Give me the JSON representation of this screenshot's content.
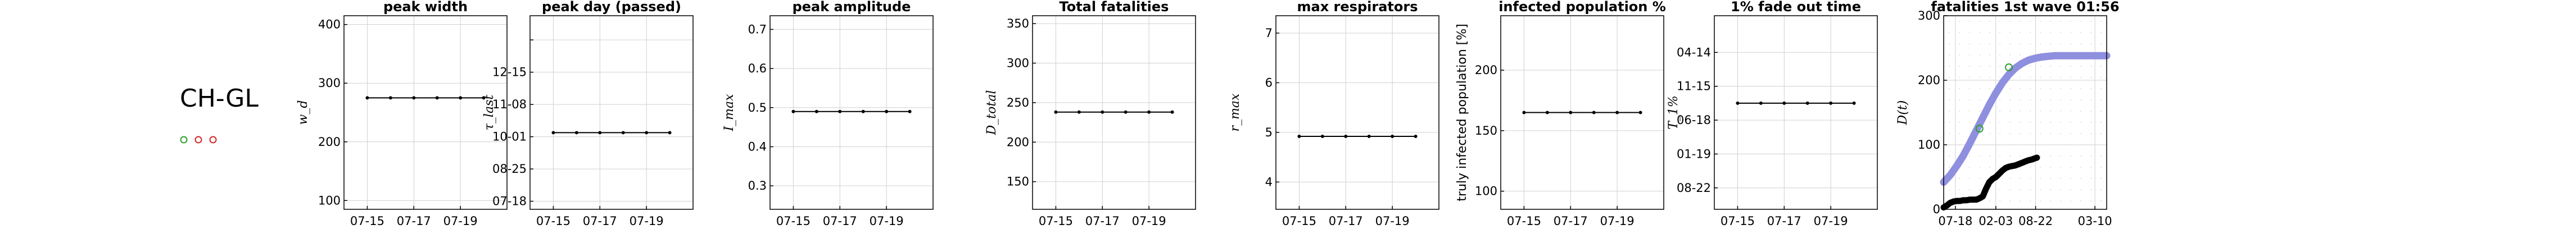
{
  "region": {
    "label": "CH-GL",
    "markers": [
      {
        "color": "#2ca02c"
      },
      {
        "color": "#d62728"
      },
      {
        "color": "#d62728"
      }
    ]
  },
  "chart_data": [
    {
      "type": "line",
      "title": "peak width",
      "ylabel": "w_d",
      "ylim": [
        85,
        415
      ],
      "yticks": [
        100,
        200,
        300,
        400
      ],
      "ytick_labels": [
        "100",
        "200",
        "300",
        "400"
      ],
      "xlim": [
        0,
        7
      ],
      "x": [
        1,
        2,
        3,
        4,
        5,
        6
      ],
      "xticks": [
        1,
        3,
        5
      ],
      "xtick_labels": [
        "07-15",
        "07-17",
        "07-19"
      ],
      "series": [
        {
          "values": [
            275,
            275,
            275,
            275,
            275,
            275
          ]
        }
      ]
    },
    {
      "type": "line",
      "title": "peak day (passed)",
      "ylabel": "τ_last",
      "ylim": [
        -10,
        230
      ],
      "yticks": [
        0,
        40,
        80,
        120,
        160,
        200
      ],
      "ytick_labels": [
        "07-18",
        "08-25",
        "10-01",
        "11-08",
        "12-15",
        ""
      ],
      "xlim": [
        0,
        7
      ],
      "x": [
        1,
        2,
        3,
        4,
        5,
        6
      ],
      "xticks": [
        1,
        3,
        5
      ],
      "xtick_labels": [
        "07-15",
        "07-17",
        "07-19"
      ],
      "series": [
        {
          "values": [
            85,
            85,
            85,
            85,
            85,
            85
          ]
        }
      ]
    },
    {
      "type": "line",
      "title": "peak amplitude",
      "ylabel": "I_max",
      "ylim": [
        0.24,
        0.735
      ],
      "yticks": [
        0.3,
        0.4,
        0.5,
        0.6,
        0.7
      ],
      "ytick_labels": [
        "0.3",
        "0.4",
        "0.5",
        "0.6",
        "0.7"
      ],
      "xlim": [
        0,
        7
      ],
      "x": [
        1,
        2,
        3,
        4,
        5,
        6
      ],
      "xticks": [
        1,
        3,
        5
      ],
      "xtick_labels": [
        "07-15",
        "07-17",
        "07-19"
      ],
      "series": [
        {
          "values": [
            0.49,
            0.49,
            0.49,
            0.49,
            0.49,
            0.49
          ]
        }
      ]
    },
    {
      "type": "line",
      "title": "Total fatalities",
      "ylabel": "D_total",
      "ylim": [
        115,
        360
      ],
      "yticks": [
        150,
        200,
        250,
        300,
        350
      ],
      "ytick_labels": [
        "150",
        "200",
        "250",
        "300",
        "350"
      ],
      "xlim": [
        0,
        7
      ],
      "x": [
        1,
        2,
        3,
        4,
        5,
        6
      ],
      "xticks": [
        1,
        3,
        5
      ],
      "xtick_labels": [
        "07-15",
        "07-17",
        "07-19"
      ],
      "series": [
        {
          "values": [
            238,
            238,
            238,
            238,
            238,
            238
          ]
        }
      ]
    },
    {
      "type": "line",
      "title": "max respirators",
      "ylabel": "r_max",
      "ylim": [
        3.45,
        7.35
      ],
      "yticks": [
        4,
        5,
        6,
        7
      ],
      "ytick_labels": [
        "4",
        "5",
        "6",
        "7"
      ],
      "xlim": [
        0,
        7
      ],
      "x": [
        1,
        2,
        3,
        4,
        5,
        6
      ],
      "xticks": [
        1,
        3,
        5
      ],
      "xtick_labels": [
        "07-15",
        "07-17",
        "07-19"
      ],
      "series": [
        {
          "values": [
            4.92,
            4.92,
            4.92,
            4.92,
            4.92,
            4.92
          ]
        }
      ]
    },
    {
      "type": "line",
      "title": "infected population %",
      "ylabel": "truly infected population [%]",
      "ylim": [
        85,
        245
      ],
      "yticks": [
        100,
        150,
        200
      ],
      "ytick_labels": [
        "100",
        "150",
        "200"
      ],
      "xlim": [
        0,
        7
      ],
      "x": [
        1,
        2,
        3,
        4,
        5,
        6
      ],
      "xticks": [
        1,
        3,
        5
      ],
      "xtick_labels": [
        "07-15",
        "07-17",
        "07-19"
      ],
      "series": [
        {
          "values": [
            165,
            165,
            165,
            165,
            165,
            165
          ]
        }
      ]
    },
    {
      "type": "line",
      "title": "1% fade out time",
      "ylabel": "T_1%",
      "ylim": [
        -38,
        305
      ],
      "yticks": [
        0,
        60,
        120,
        180,
        240
      ],
      "ytick_labels": [
        "08-22",
        "01-19",
        "06-18",
        "11-15",
        "04-14"
      ],
      "xlim": [
        0,
        7
      ],
      "x": [
        1,
        2,
        3,
        4,
        5,
        6
      ],
      "xticks": [
        1,
        3,
        5
      ],
      "xtick_labels": [
        "07-15",
        "07-17",
        "07-19"
      ],
      "series": [
        {
          "values": [
            150,
            150,
            150,
            150,
            150,
            150
          ]
        }
      ]
    },
    {
      "type": "line",
      "title": "fatalities 1st wave 01:56",
      "ylabel": "D(t)",
      "ylim": [
        0,
        300
      ],
      "yticks": [
        0,
        100,
        200,
        300
      ],
      "ytick_labels": [
        "0",
        "100",
        "200",
        "300"
      ],
      "xlim": [
        0,
        250
      ],
      "xticks": [
        18,
        80,
        141,
        232
      ],
      "xtick_labels": [
        "07-18",
        "02-03",
        "08-22",
        "03-10"
      ],
      "series": [
        {
          "color": "#8f8fdf",
          "x": [
            0,
            10,
            20,
            30,
            40,
            50,
            60,
            70,
            80,
            90,
            100,
            110,
            120,
            130,
            140,
            150,
            160,
            170,
            180,
            190,
            200,
            210,
            220,
            230,
            240,
            250
          ],
          "values": [
            42,
            53,
            67,
            83,
            102,
            122,
            142,
            162,
            180,
            196,
            209,
            219,
            226,
            231,
            234,
            236,
            237,
            238,
            238,
            238,
            238,
            238,
            238,
            238,
            238,
            238
          ]
        },
        {
          "color": "#000000",
          "x": [
            0,
            5,
            10,
            15,
            20,
            25,
            30,
            35,
            40,
            45,
            50,
            55,
            60,
            65,
            70,
            75,
            80,
            85,
            90,
            95,
            100,
            105,
            110,
            115,
            120,
            125,
            130,
            135,
            140,
            143
          ],
          "values": [
            3,
            6,
            10,
            12,
            13,
            13,
            14,
            14,
            15,
            15,
            15,
            17,
            20,
            32,
            42,
            47,
            50,
            55,
            60,
            64,
            66,
            67,
            68,
            70,
            72,
            74,
            76,
            77,
            79,
            80
          ]
        }
      ],
      "markers": [
        {
          "x": 55,
          "y": 125,
          "color": "#2ca02c"
        },
        {
          "x": 100,
          "y": 220,
          "color": "#2ca02c"
        }
      ]
    }
  ]
}
